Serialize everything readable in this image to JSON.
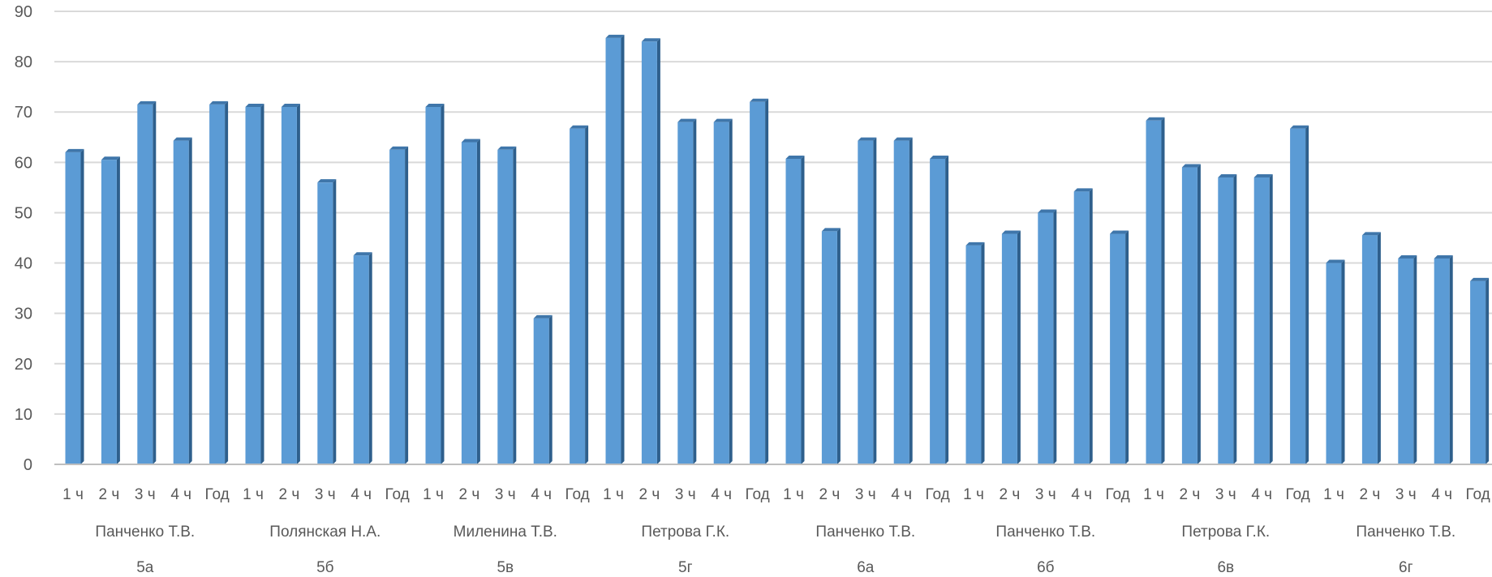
{
  "chart_data": {
    "type": "bar",
    "title": "",
    "xlabel": "",
    "ylabel": "",
    "ylim": [
      0,
      90
    ],
    "yticks": [
      0,
      10,
      20,
      30,
      40,
      50,
      60,
      70,
      80,
      90
    ],
    "grid": true,
    "legend": "none",
    "colors": {
      "bar_front": "#5B9BD5",
      "bar_side": "#2E5F8C",
      "bar_top": "#3F76AA",
      "grid": "#D9D9D9",
      "axis": "#BFBFBF",
      "text": "#595959"
    },
    "subcategories": [
      "1 ч",
      "2 ч",
      "3 ч",
      "4 ч",
      "Год"
    ],
    "groups": [
      {
        "class": "5а",
        "teacher": "Панченко Т.В.",
        "values": [
          62,
          60.5,
          71.5,
          64.3,
          71.5
        ]
      },
      {
        "class": "5б",
        "teacher": "Полянская Н.А.",
        "values": [
          71,
          71,
          56,
          41.5,
          62.5
        ]
      },
      {
        "class": "5в",
        "teacher": "Миленина Т.В.",
        "values": [
          71,
          64,
          62.5,
          29,
          66.7
        ]
      },
      {
        "class": "5г",
        "teacher": "Петрова Г.К.",
        "values": [
          84.7,
          84,
          68,
          68,
          72
        ]
      },
      {
        "class": "6а",
        "teacher": "Панченко Т.В.",
        "values": [
          60.7,
          46.3,
          64.3,
          64.3,
          60.7
        ]
      },
      {
        "class": "6б",
        "teacher": "Панченко Т.В.",
        "values": [
          43.5,
          45.8,
          50,
          54.2,
          45.8
        ]
      },
      {
        "class": "6в",
        "teacher": "Петрова Г.К.",
        "values": [
          68.3,
          59,
          57,
          57,
          66.7
        ]
      },
      {
        "class": "6г",
        "teacher": "Панченко Т.В.",
        "values": [
          40,
          45.5,
          40.9,
          40.9,
          36.4
        ]
      }
    ]
  }
}
